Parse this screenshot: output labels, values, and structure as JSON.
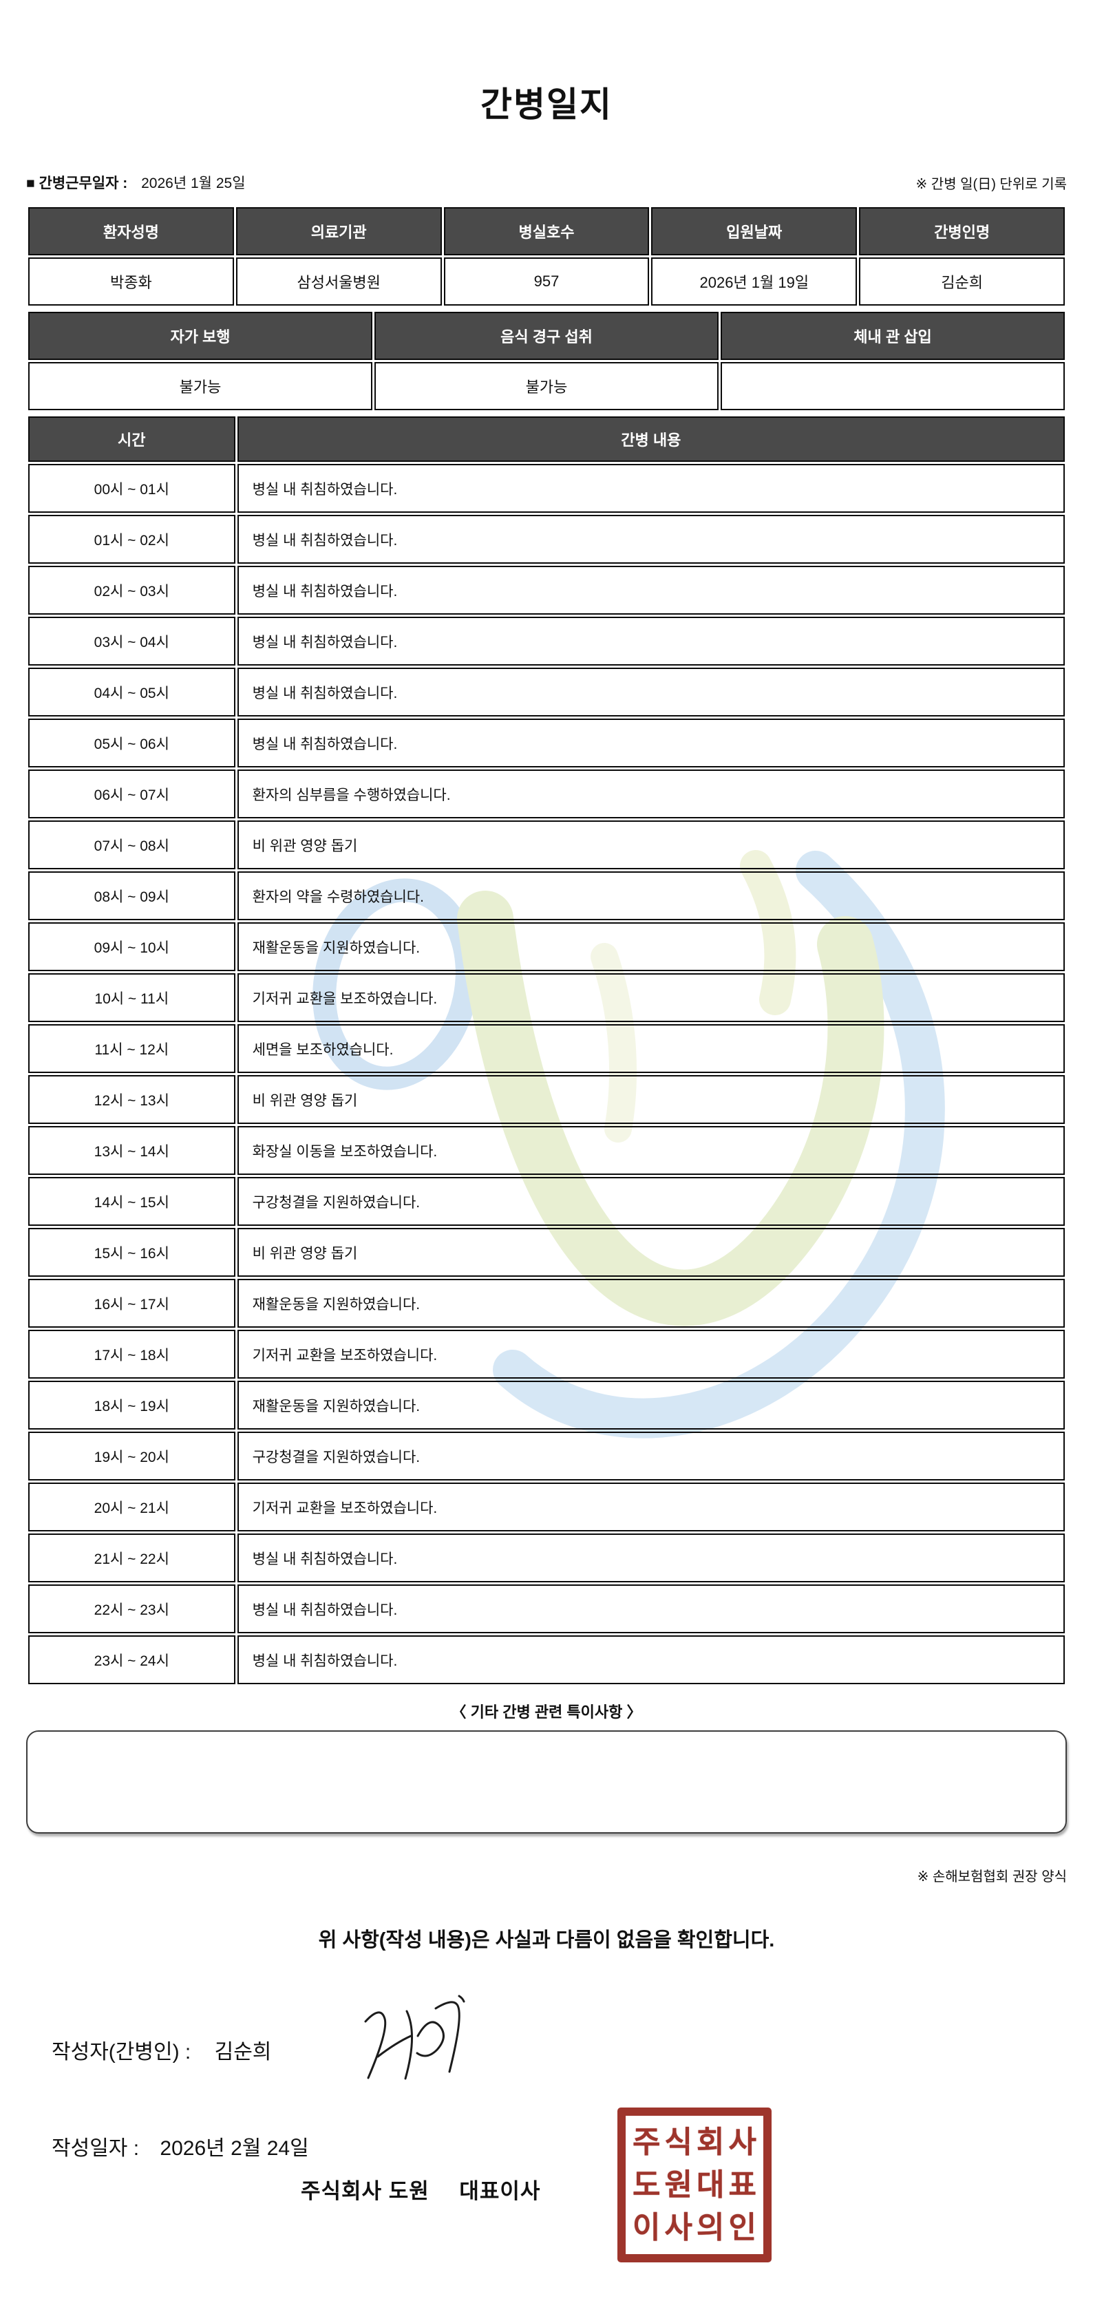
{
  "title": "간병일지",
  "meta": {
    "work_date_label": "■ 간병근무일자 :",
    "work_date": "2026년 1월 25일",
    "unit_note": "※ 간병 일(日) 단위로 기록"
  },
  "patient_table": {
    "headers": [
      "환자성명",
      "의료기관",
      "병실호수",
      "입원날짜",
      "간병인명"
    ],
    "values": [
      "박종화",
      "삼성서울병원",
      "957",
      "2026년 1월 19일",
      "김순희"
    ]
  },
  "status_table": {
    "headers": [
      "자가 보행",
      "음식 경구 섭취",
      "체내 관 삽입"
    ],
    "values": [
      "불가능",
      "불가능",
      ""
    ]
  },
  "log_table": {
    "headers": [
      "시간",
      "간병 내용"
    ],
    "rows": [
      {
        "time": "00시 ~ 01시",
        "content": "병실 내 취침하였습니다."
      },
      {
        "time": "01시 ~ 02시",
        "content": "병실 내 취침하였습니다."
      },
      {
        "time": "02시 ~ 03시",
        "content": "병실 내 취침하였습니다."
      },
      {
        "time": "03시 ~ 04시",
        "content": "병실 내 취침하였습니다."
      },
      {
        "time": "04시 ~ 05시",
        "content": "병실 내 취침하였습니다."
      },
      {
        "time": "05시 ~ 06시",
        "content": "병실 내 취침하였습니다."
      },
      {
        "time": "06시 ~ 07시",
        "content": "환자의 심부름을 수행하였습니다."
      },
      {
        "time": "07시 ~ 08시",
        "content": "비 위관 영양 돕기"
      },
      {
        "time": "08시 ~ 09시",
        "content": "환자의 약을 수령하였습니다."
      },
      {
        "time": "09시 ~ 10시",
        "content": "재활운동을 지원하였습니다."
      },
      {
        "time": "10시 ~ 11시",
        "content": "기저귀 교환을 보조하였습니다."
      },
      {
        "time": "11시 ~ 12시",
        "content": "세면을 보조하였습니다."
      },
      {
        "time": "12시 ~ 13시",
        "content": "비 위관 영양 돕기"
      },
      {
        "time": "13시 ~ 14시",
        "content": "화장실 이동을 보조하였습니다."
      },
      {
        "time": "14시 ~ 15시",
        "content": "구강청결을 지원하였습니다."
      },
      {
        "time": "15시 ~ 16시",
        "content": "비 위관 영양 돕기"
      },
      {
        "time": "16시 ~ 17시",
        "content": "재활운동을 지원하였습니다."
      },
      {
        "time": "17시 ~ 18시",
        "content": "기저귀 교환을 보조하였습니다."
      },
      {
        "time": "18시 ~ 19시",
        "content": "재활운동을 지원하였습니다."
      },
      {
        "time": "19시 ~ 20시",
        "content": "구강청결을 지원하였습니다."
      },
      {
        "time": "20시 ~ 21시",
        "content": "기저귀 교환을 보조하였습니다."
      },
      {
        "time": "21시 ~ 22시",
        "content": "병실 내 취침하였습니다."
      },
      {
        "time": "22시 ~ 23시",
        "content": "병실 내 취침하였습니다."
      },
      {
        "time": "23시 ~ 24시",
        "content": "병실 내 취침하였습니다."
      }
    ]
  },
  "notes": {
    "section_title": "〈 기타 간병 관련 특이사항 〉",
    "content": "",
    "form_note": "※ 손해보험협회 권장 양식"
  },
  "footer": {
    "confirmation": "위 사항(작성 내용)은 사실과 다름이 없음을 확인합니다.",
    "writer_label": "작성자(간병인) :",
    "writer_name": "김순희",
    "date_label": "작성일자 :",
    "written_date": "2026년 2월 24일",
    "company": "주식회사 도원",
    "ceo_title": "대표이사",
    "stamp_lines": [
      "주식회사",
      "도원대표",
      "이사의인"
    ]
  },
  "colors": {
    "table_header_bg": "#4a4a4a",
    "table_border": "#0a0a0a",
    "stamp_red": "#9e352c",
    "watermark_blue": "#cfe3f4",
    "watermark_green": "#e4edcb",
    "watermark_yellow_green": "#eef1d6"
  }
}
